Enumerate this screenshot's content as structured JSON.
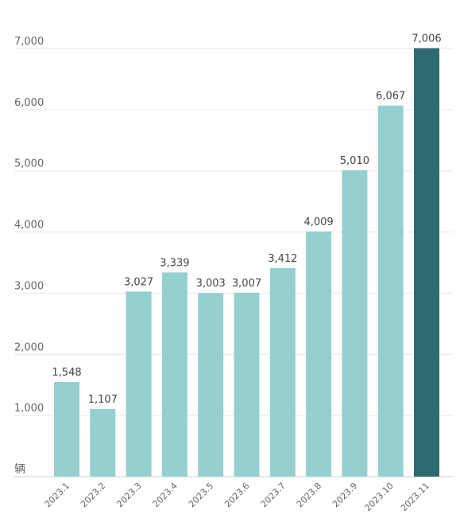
{
  "chart_data": {
    "type": "bar",
    "categories": [
      "2023.1",
      "2023.2",
      "2023.3",
      "2023.4",
      "2023.5",
      "2023.6",
      "2023.7",
      "2023.8",
      "2023.9",
      "2023.10",
      "2023.11"
    ],
    "values": [
      1548,
      1107,
      3027,
      3339,
      3003,
      3007,
      3412,
      4009,
      5010,
      6067,
      7006
    ],
    "value_labels": [
      "1,548",
      "1,107",
      "3,027",
      "3,339",
      "3,003",
      "3,007",
      "3,412",
      "4,009",
      "5,010",
      "6,067",
      "7,006"
    ],
    "y_ticks": [
      1000,
      2000,
      3000,
      4000,
      5000,
      6000,
      7000
    ],
    "y_tick_labels": [
      "1,000",
      "2,000",
      "3,000",
      "4,000",
      "5,000",
      "6,000",
      "7,000"
    ],
    "ylim": [
      0,
      7000
    ],
    "unit_label": "辆",
    "grid": true,
    "bar_color": "#94d0d0",
    "highlight_color": "#2d6b70",
    "highlight_index": 10
  }
}
